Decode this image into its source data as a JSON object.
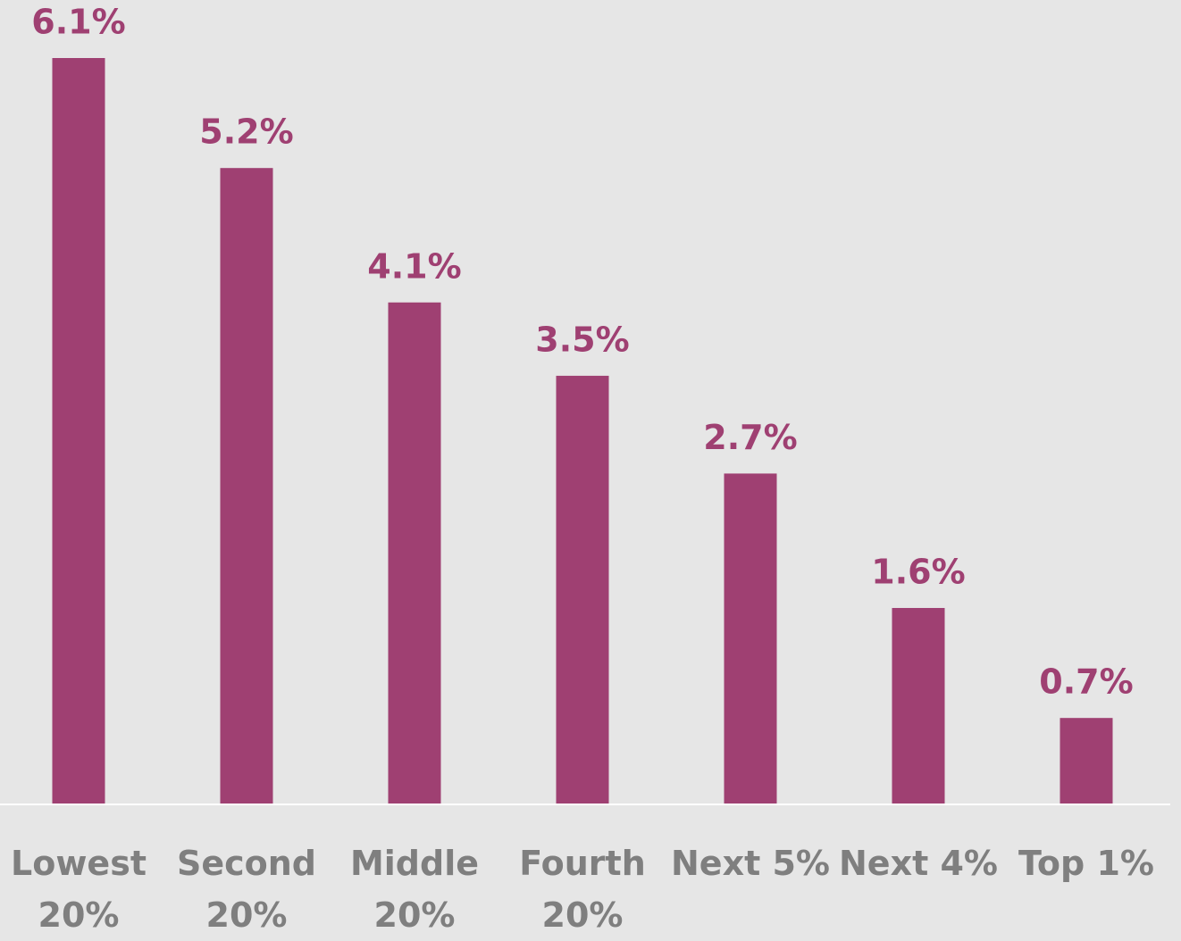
{
  "chart_data": {
    "type": "bar",
    "categories": [
      "Lowest 20%",
      "Second 20%",
      "Middle 20%",
      "Fourth 20%",
      "Next 5%",
      "Next 4%",
      "Top 1%"
    ],
    "values": [
      6.1,
      5.2,
      4.1,
      3.5,
      2.7,
      1.6,
      0.7
    ],
    "value_labels": [
      "6.1%",
      "5.2%",
      "4.1%",
      "3.5%",
      "2.7%",
      "1.6%",
      "0.7%"
    ],
    "color": "#9f4072"
  }
}
